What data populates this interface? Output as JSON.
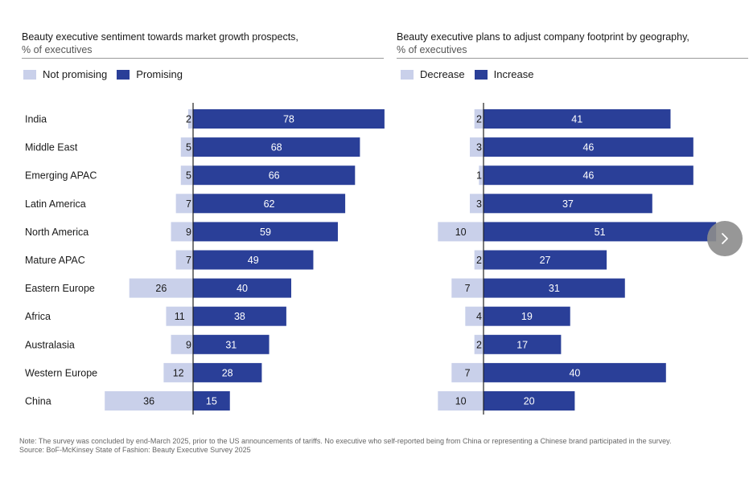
{
  "colors": {
    "light": "#c9d0ea",
    "dark": "#2a3f98",
    "axis": "#222222"
  },
  "chart_data": [
    {
      "type": "bar",
      "orientation": "horizontal-diverging",
      "title": "Beauty executive sentiment towards market growth prospects,",
      "subtitle": "% of executives",
      "legend": [
        "Not promising",
        "Promising"
      ],
      "categories": [
        "India",
        "Middle East",
        "Emerging APAC",
        "Latin America",
        "North America",
        "Mature APAC",
        "Eastern Europe",
        "Africa",
        "Australasia",
        "Western Europe",
        "China"
      ],
      "series": [
        {
          "name": "Not promising",
          "values": [
            2,
            5,
            5,
            7,
            9,
            7,
            26,
            11,
            9,
            12,
            36
          ]
        },
        {
          "name": "Promising",
          "values": [
            78,
            68,
            66,
            62,
            59,
            49,
            40,
            38,
            31,
            28,
            15
          ]
        }
      ]
    },
    {
      "type": "bar",
      "orientation": "horizontal-diverging",
      "title": "Beauty executive plans to adjust company footprint by geography,",
      "subtitle": "% of executives",
      "legend": [
        "Decrease",
        "Increase"
      ],
      "categories": [
        "India",
        "Middle East",
        "Emerging APAC",
        "Latin America",
        "North America",
        "Mature APAC",
        "Eastern Europe",
        "Africa",
        "Australasia",
        "Western Europe",
        "China"
      ],
      "series": [
        {
          "name": "Decrease",
          "values": [
            2,
            3,
            1,
            3,
            10,
            2,
            7,
            4,
            2,
            7,
            10
          ]
        },
        {
          "name": "Increase",
          "values": [
            41,
            46,
            46,
            37,
            51,
            27,
            31,
            19,
            17,
            40,
            20
          ]
        }
      ]
    }
  ],
  "footnote": {
    "note": "Note: The survey was concluded by end-March 2025, prior to the US announcements of tariffs. No executive who self-reported being from China or representing a Chinese brand participated in the survey.",
    "source": "Source: BoF-McKinsey State of Fashion: Beauty Executive Survey 2025"
  },
  "nav": {
    "next_icon": "chevron-right-icon"
  }
}
